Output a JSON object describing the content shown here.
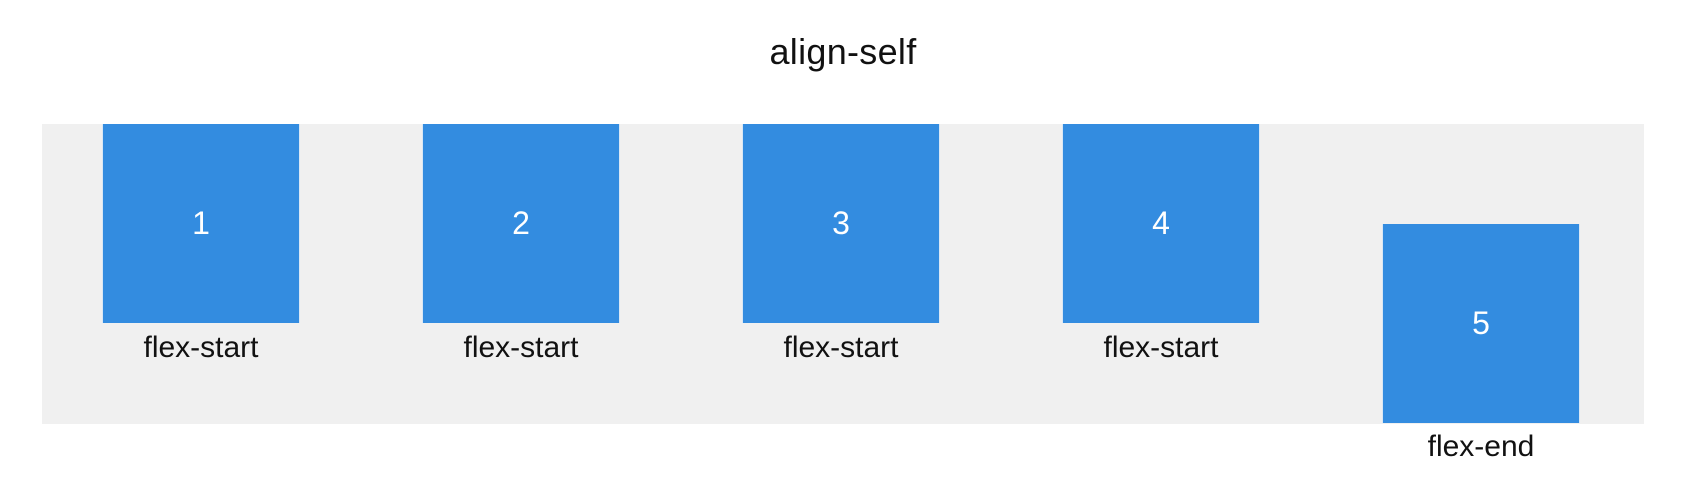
{
  "title": "align-self",
  "items": [
    {
      "number": "1",
      "label": "flex-start"
    },
    {
      "number": "2",
      "label": "flex-start"
    },
    {
      "number": "3",
      "label": "flex-start"
    },
    {
      "number": "4",
      "label": "flex-start"
    },
    {
      "number": "5",
      "label": "flex-end"
    }
  ],
  "colors": {
    "box": "#338ce0",
    "container": "#f0f0f0",
    "text": "#111111",
    "box_text": "#ffffff"
  }
}
